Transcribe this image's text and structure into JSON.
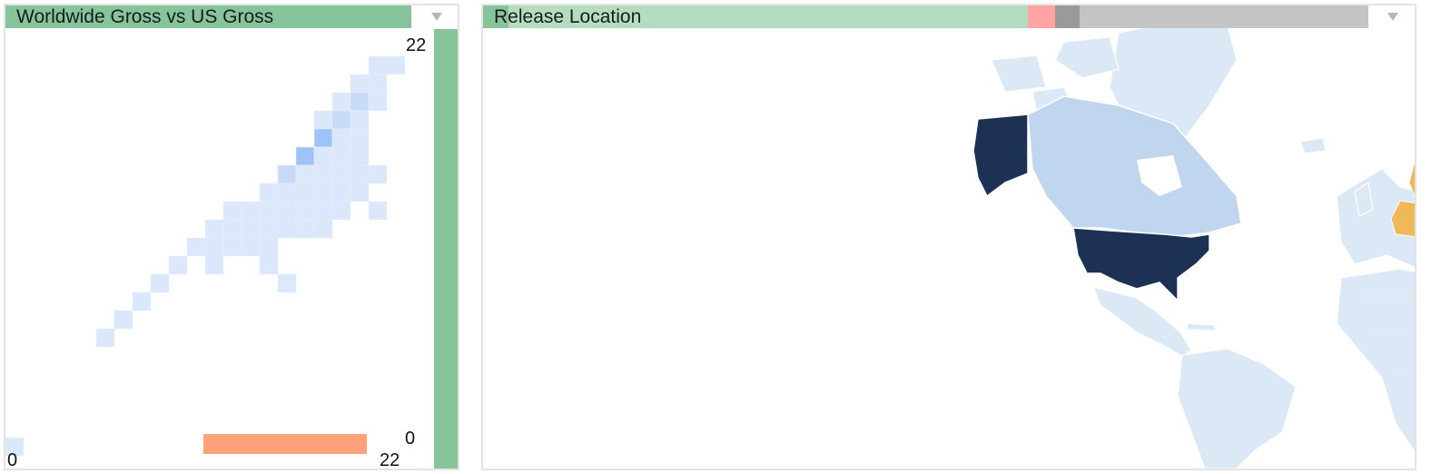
{
  "left_panel": {
    "title": "Worldwide Gross vs US Gross",
    "axis": {
      "y_max": "22",
      "x_min": "0",
      "x_max": "22",
      "zero_label": "0"
    },
    "colors": {
      "title_bar": "#86c59b",
      "side_bar": "#86c59b",
      "x_bar": "#ffa27c",
      "cell_light": "#dbe8fb",
      "cell_mid": "#c7dbf9",
      "cell_strong": "#9ec3f6",
      "cell_dark": "#6aa3f0"
    },
    "chart_data": {
      "type": "heatmap",
      "xlabel": "",
      "ylabel": "",
      "x_range": [
        0,
        22
      ],
      "y_range": [
        0,
        22
      ],
      "cells": [
        {
          "col": 20,
          "row": 21,
          "level": 1
        },
        {
          "col": 21,
          "row": 21,
          "level": 1
        },
        {
          "col": 19,
          "row": 20,
          "level": 1
        },
        {
          "col": 20,
          "row": 20,
          "level": 1
        },
        {
          "col": 18,
          "row": 19,
          "level": 1
        },
        {
          "col": 19,
          "row": 19,
          "level": 2
        },
        {
          "col": 20,
          "row": 19,
          "level": 1
        },
        {
          "col": 17,
          "row": 18,
          "level": 1
        },
        {
          "col": 18,
          "row": 18,
          "level": 2
        },
        {
          "col": 19,
          "row": 18,
          "level": 1
        },
        {
          "col": 17,
          "row": 17,
          "level": 3
        },
        {
          "col": 18,
          "row": 17,
          "level": 1
        },
        {
          "col": 19,
          "row": 17,
          "level": 1
        },
        {
          "col": 16,
          "row": 16,
          "level": 3
        },
        {
          "col": 17,
          "row": 16,
          "level": 1
        },
        {
          "col": 18,
          "row": 16,
          "level": 1
        },
        {
          "col": 19,
          "row": 16,
          "level": 1
        },
        {
          "col": 15,
          "row": 15,
          "level": 2
        },
        {
          "col": 16,
          "row": 15,
          "level": 1
        },
        {
          "col": 17,
          "row": 15,
          "level": 1
        },
        {
          "col": 18,
          "row": 15,
          "level": 1
        },
        {
          "col": 19,
          "row": 15,
          "level": 1
        },
        {
          "col": 20,
          "row": 15,
          "level": 1
        },
        {
          "col": 14,
          "row": 14,
          "level": 1
        },
        {
          "col": 15,
          "row": 14,
          "level": 1
        },
        {
          "col": 16,
          "row": 14,
          "level": 1
        },
        {
          "col": 17,
          "row": 14,
          "level": 1
        },
        {
          "col": 18,
          "row": 14,
          "level": 1
        },
        {
          "col": 19,
          "row": 14,
          "level": 1
        },
        {
          "col": 12,
          "row": 13,
          "level": 1
        },
        {
          "col": 13,
          "row": 13,
          "level": 1
        },
        {
          "col": 14,
          "row": 13,
          "level": 1
        },
        {
          "col": 15,
          "row": 13,
          "level": 1
        },
        {
          "col": 16,
          "row": 13,
          "level": 1
        },
        {
          "col": 17,
          "row": 13,
          "level": 1
        },
        {
          "col": 18,
          "row": 13,
          "level": 1
        },
        {
          "col": 20,
          "row": 13,
          "level": 1
        },
        {
          "col": 11,
          "row": 12,
          "level": 1
        },
        {
          "col": 12,
          "row": 12,
          "level": 1
        },
        {
          "col": 13,
          "row": 12,
          "level": 1
        },
        {
          "col": 14,
          "row": 12,
          "level": 1
        },
        {
          "col": 15,
          "row": 12,
          "level": 1
        },
        {
          "col": 16,
          "row": 12,
          "level": 1
        },
        {
          "col": 17,
          "row": 12,
          "level": 1
        },
        {
          "col": 10,
          "row": 11,
          "level": 1
        },
        {
          "col": 11,
          "row": 11,
          "level": 1
        },
        {
          "col": 12,
          "row": 11,
          "level": 1
        },
        {
          "col": 13,
          "row": 11,
          "level": 1
        },
        {
          "col": 14,
          "row": 11,
          "level": 1
        },
        {
          "col": 9,
          "row": 10,
          "level": 1
        },
        {
          "col": 11,
          "row": 10,
          "level": 1
        },
        {
          "col": 14,
          "row": 10,
          "level": 1
        },
        {
          "col": 8,
          "row": 9,
          "level": 1
        },
        {
          "col": 15,
          "row": 9,
          "level": 1
        },
        {
          "col": 7,
          "row": 8,
          "level": 1
        },
        {
          "col": 6,
          "row": 7,
          "level": 1
        },
        {
          "col": 5,
          "row": 6,
          "level": 1
        },
        {
          "col": 0,
          "row": 0,
          "level": 1
        }
      ],
      "x_bars": [
        {
          "start": 11,
          "end": 12
        },
        {
          "start": 13,
          "end": 19
        }
      ]
    }
  },
  "right_panel": {
    "title": "Release Location",
    "colors": {
      "title_green": "#b4dcc1",
      "title_green_dark": "#86c59b",
      "title_pink": "#ffa3a3",
      "title_dark_gray": "#9a9a9a",
      "title_gray": "#c4c4c4",
      "ocean": "#ffffff",
      "land_light": "#dbe8f6",
      "land_mid": "#c0d6ee",
      "land_dark": "#1c3154",
      "land_highlight": "#f0b85a",
      "border": "#e8e8e8"
    },
    "legend_segments": [
      {
        "color_key": "title_green",
        "share": 0.615
      },
      {
        "color_key": "title_pink",
        "share": 0.031
      },
      {
        "color_key": "title_dark_gray",
        "share": 0.028
      },
      {
        "color_key": "title_gray",
        "share": 0.326
      }
    ]
  },
  "icons": {
    "dropdown": "triangle-down-icon"
  }
}
